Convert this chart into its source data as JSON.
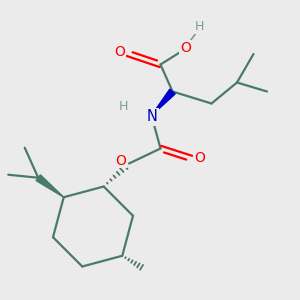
{
  "background_color": "#ebebeb",
  "bond_color": "#4a7a6a",
  "bond_width": 1.6,
  "O_color": "#ff0000",
  "N_color": "#0000cc",
  "H_color": "#7a9a9a",
  "figsize": [
    3.0,
    3.0
  ],
  "dpi": 100,
  "xlim": [
    0,
    10
  ],
  "ylim": [
    0,
    10
  ]
}
